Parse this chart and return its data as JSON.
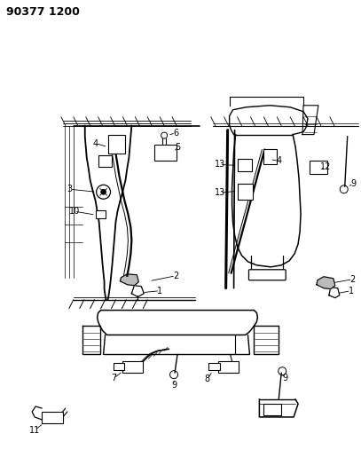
{
  "title_code": "90377 1200",
  "background_color": "#ffffff",
  "line_color": "#000000",
  "fig_width": 4.07,
  "fig_height": 5.33,
  "dpi": 100,
  "title_fontsize": 9,
  "label_fontsize": 7
}
